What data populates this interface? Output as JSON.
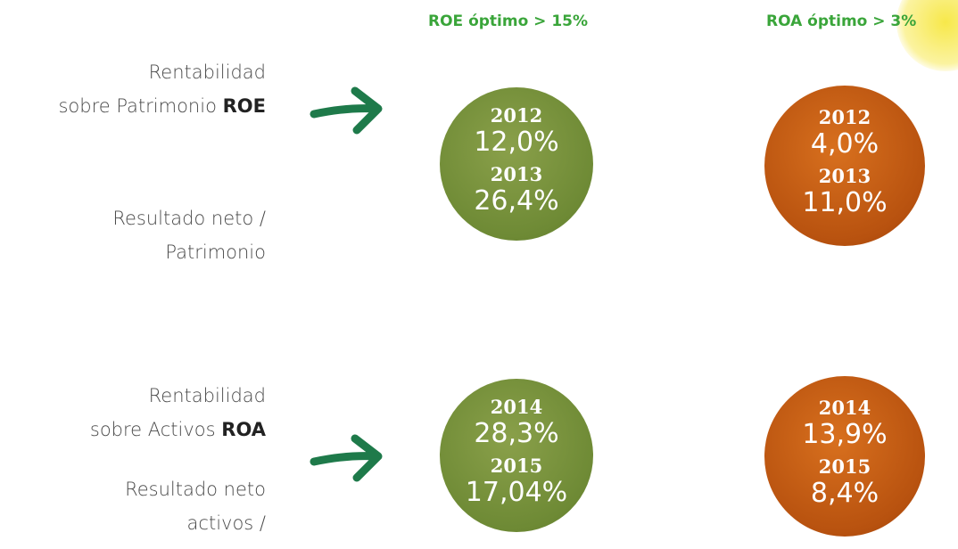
{
  "headers": [
    "ROE óptimo > 15%",
    "ROA óptimo > 3%"
  ],
  "rows": [
    {
      "label": [
        "Rentabilidad",
        "sobre Patrimonio"
      ],
      "label_bold": "ROE",
      "description": [
        "Resultado neto /",
        "Patrimonio"
      ],
      "circles": [
        [
          {
            "year": "2012",
            "value": "12,0%"
          },
          {
            "year": "2013",
            "value": "26,4%"
          }
        ],
        [
          {
            "year": "2012",
            "value": "4,0%"
          },
          {
            "year": "2013",
            "value": "11,0%"
          }
        ]
      ]
    },
    {
      "label": [
        "Rentabilidad",
        "sobre Activos"
      ],
      "label_bold": "ROA",
      "description": [
        "Resultado neto",
        "activos /"
      ],
      "circles": [
        [
          {
            "year": "2014",
            "value": "28,3%"
          },
          {
            "year": "2015",
            "value": "17,04%"
          }
        ],
        [
          {
            "year": "2014",
            "value": "13,9%"
          },
          {
            "year": "2015",
            "value": "8,4%"
          }
        ]
      ]
    }
  ]
}
